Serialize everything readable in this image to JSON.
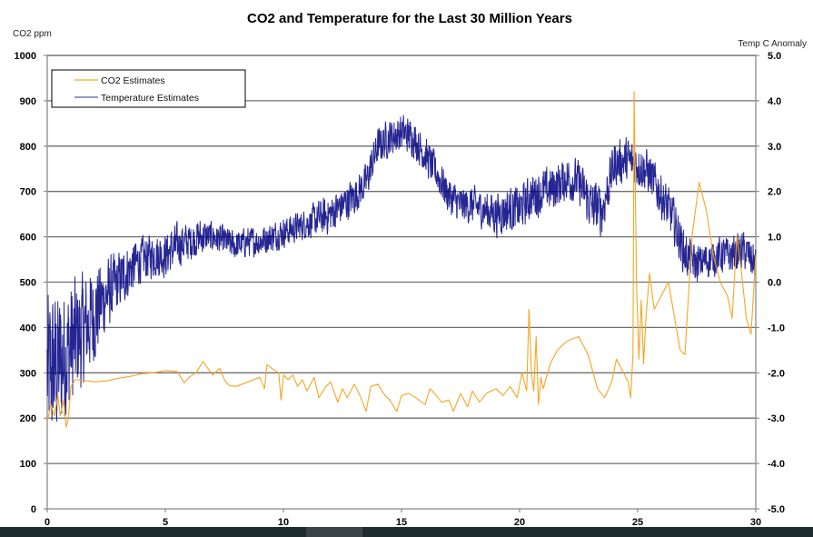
{
  "chart_data": {
    "type": "line",
    "title": "CO2 and Temperature for the Last 30 Million Years",
    "xlabel": "",
    "ylabel_left": "CO2 ppm",
    "ylabel_right": "Temp C Anomaly",
    "xlim": [
      0,
      30
    ],
    "ylim_left": [
      0,
      1000
    ],
    "ylim_right": [
      -5.0,
      5.0
    ],
    "x_ticks": [
      "0",
      "5",
      "10",
      "15",
      "20",
      "25",
      "30"
    ],
    "y_ticks_left": [
      "0",
      "100",
      "200",
      "300",
      "400",
      "500",
      "600",
      "700",
      "800",
      "900",
      "1000"
    ],
    "y_ticks_right": [
      "-5.0",
      "-4.0",
      "-3.0",
      "-2.0",
      "-1.0",
      "0.0",
      "1.0",
      "2.0",
      "3.0",
      "4.0",
      "5.0"
    ],
    "grid": true,
    "legend_position": "top-left",
    "legend": [
      "CO2 Estimates",
      "Temperature Estimates"
    ],
    "series": [
      {
        "name": "CO2 Estimates",
        "axis": "left",
        "color": "#f5a623",
        "x": [
          0.0,
          0.15,
          0.3,
          0.45,
          0.55,
          0.7,
          0.8,
          0.9,
          1.0,
          1.2,
          1.6,
          2.0,
          2.5,
          3.0,
          3.5,
          4.0,
          4.5,
          5.0,
          5.5,
          5.8,
          6.0,
          6.3,
          6.6,
          7.0,
          7.3,
          7.5,
          7.7,
          8.0,
          8.5,
          9.0,
          9.2,
          9.3,
          9.5,
          9.8,
          9.9,
          10.0,
          10.2,
          10.4,
          10.6,
          10.8,
          11.0,
          11.3,
          11.5,
          11.8,
          12.0,
          12.3,
          12.5,
          12.7,
          13.0,
          13.2,
          13.5,
          13.7,
          14.0,
          14.3,
          14.5,
          14.8,
          15.0,
          15.3,
          15.6,
          16.0,
          16.2,
          16.4,
          16.7,
          17.0,
          17.2,
          17.5,
          17.8,
          18.0,
          18.3,
          18.6,
          19.0,
          19.3,
          19.6,
          19.9,
          20.1,
          20.3,
          20.4,
          20.5,
          20.6,
          20.7,
          20.8,
          20.9,
          21.0,
          21.3,
          21.6,
          22.0,
          22.5,
          22.9,
          23.3,
          23.6,
          23.9,
          24.1,
          24.2,
          24.4,
          24.6,
          24.7,
          24.8,
          24.85,
          24.95,
          25.05,
          25.15,
          25.25,
          25.35,
          25.5,
          25.7,
          26.0,
          26.3,
          26.5,
          26.8,
          27.0,
          27.3,
          27.6,
          27.9,
          28.2,
          28.5,
          28.8,
          29.0,
          29.2,
          29.4,
          29.6,
          29.8,
          30.0
        ],
        "values": [
          190,
          230,
          205,
          250,
          205,
          240,
          180,
          200,
          270,
          285,
          283,
          280,
          282,
          288,
          292,
          298,
          300,
          305,
          303,
          278,
          290,
          300,
          325,
          295,
          310,
          285,
          272,
          270,
          280,
          290,
          265,
          318,
          310,
          300,
          240,
          295,
          285,
          295,
          270,
          285,
          260,
          290,
          245,
          270,
          280,
          235,
          265,
          245,
          275,
          255,
          215,
          270,
          275,
          250,
          240,
          215,
          250,
          255,
          245,
          230,
          265,
          255,
          235,
          240,
          215,
          255,
          225,
          260,
          235,
          255,
          265,
          250,
          270,
          245,
          300,
          260,
          440,
          300,
          260,
          380,
          230,
          290,
          265,
          320,
          350,
          370,
          380,
          340,
          265,
          245,
          280,
          330,
          320,
          300,
          280,
          245,
          340,
          920,
          500,
          330,
          460,
          320,
          420,
          520,
          440,
          470,
          500,
          440,
          350,
          340,
          600,
          720,
          660,
          560,
          500,
          470,
          420,
          600,
          520,
          420,
          385,
          560
        ],
        "values_note": "ppm"
      },
      {
        "name": "Temperature Estimates",
        "axis": "right",
        "color": "#000080",
        "x": [
          0,
          0.5,
          1,
          1.5,
          2,
          2.5,
          3,
          3.5,
          4,
          4.5,
          5,
          5.5,
          6,
          6.5,
          7,
          7.5,
          8,
          8.5,
          9,
          9.5,
          10,
          10.5,
          11,
          11.5,
          12,
          12.5,
          13,
          13.5,
          14,
          14.5,
          15,
          15.5,
          16,
          16.5,
          17,
          17.5,
          18,
          18.5,
          19,
          19.5,
          20,
          20.5,
          21,
          21.5,
          22,
          22.5,
          23,
          23.5,
          24,
          24.5,
          25,
          25.5,
          26,
          26.5,
          27,
          27.5,
          28,
          28.5,
          29,
          29.5,
          30
        ],
        "trend_values": [
          -2.0,
          -1.8,
          -1.4,
          -1.1,
          -0.7,
          -0.3,
          0.0,
          0.3,
          0.5,
          0.6,
          0.6,
          0.8,
          0.9,
          1.0,
          1.0,
          0.9,
          0.8,
          0.9,
          0.9,
          1.0,
          1.1,
          1.2,
          1.3,
          1.4,
          1.5,
          1.7,
          1.9,
          2.2,
          3.0,
          3.2,
          3.3,
          3.2,
          2.8,
          2.4,
          1.9,
          1.7,
          1.7,
          1.6,
          1.5,
          1.6,
          1.6,
          1.9,
          2.0,
          2.1,
          2.3,
          2.2,
          1.7,
          1.6,
          2.6,
          2.7,
          2.6,
          2.4,
          1.9,
          1.4,
          0.6,
          0.4,
          0.5,
          0.6,
          0.6,
          0.7,
          0.4
        ],
        "noise_amplitude": [
          2.2,
          2.0,
          1.8,
          1.5,
          1.3,
          1.0,
          0.8,
          0.7,
          0.6,
          0.6,
          0.6,
          0.6,
          0.5,
          0.5,
          0.4,
          0.4,
          0.4,
          0.4,
          0.4,
          0.4,
          0.4,
          0.4,
          0.4,
          0.5,
          0.5,
          0.5,
          0.5,
          0.5,
          0.5,
          0.5,
          0.5,
          0.5,
          0.5,
          0.5,
          0.5,
          0.5,
          0.5,
          0.5,
          0.6,
          0.6,
          0.6,
          0.6,
          0.6,
          0.6,
          0.6,
          0.6,
          0.7,
          0.7,
          0.6,
          0.6,
          0.6,
          0.6,
          0.6,
          0.6,
          0.6,
          0.5,
          0.5,
          0.5,
          0.5,
          0.5,
          0.5
        ],
        "values_note": "degrees C anomaly; trace is dense noisy signal around trend"
      }
    ]
  }
}
